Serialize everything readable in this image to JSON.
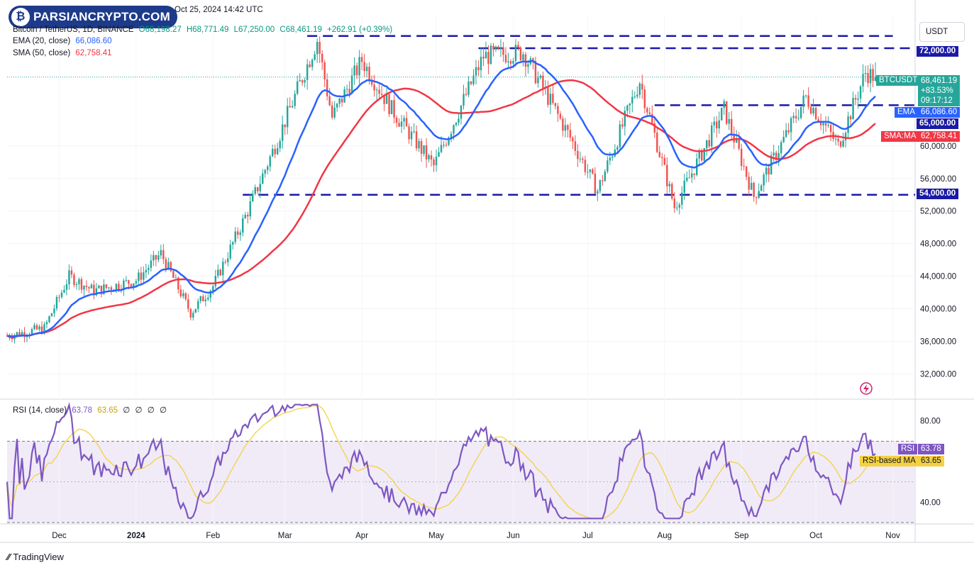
{
  "header": {
    "logo_text": "PARSIANCRYPTO.COM",
    "date_text": "Oct 25, 2024 14:42 UTC",
    "symbol_line": "Bitcoin / TetherUS, 1D, BINANCE",
    "ohlc": {
      "o": "O68,198.27",
      "h": "H68,771.49",
      "l": "L67,250.00",
      "c": "C68,461.19",
      "chg": "+262.91 (+0.39%)"
    },
    "ema_label": "EMA (20, close)",
    "ema_value": "66,086.60",
    "sma_label": "SMA (50, close)",
    "sma_value": "62,758.41",
    "rsi_label": "RSI (14, close)",
    "rsi_value": "63.78",
    "rsi_ma_value": "63.65",
    "rsi_extra": [
      "∅",
      "∅",
      "∅",
      "∅"
    ]
  },
  "price_scale": {
    "currency": "USDT",
    "ticks": [
      "60,000.00",
      "56,000.00",
      "52,000.00",
      "48,000.00",
      "44,000.00",
      "40,000.00",
      "36,000.00",
      "32,000.00"
    ],
    "tags": {
      "level_72k": "72,000.00",
      "last_name": "BTCUSDT",
      "last_price": "68,461.19",
      "last_change": "+83.53%",
      "countdown": "09:17:12",
      "ema_name": "EMA",
      "ema_price": "66,086.60",
      "level_65k": "65,000.00",
      "sma_name": "SMA:MA",
      "sma_price": "62,758.41",
      "level_54k": "54,000.00"
    }
  },
  "rsi_scale": {
    "ticks": [
      "80.00",
      "40.00"
    ],
    "rsi_name": "RSI",
    "rsi_value": "63.78",
    "ma_name": "RSI-based MA",
    "ma_value": "63.65"
  },
  "time_axis": [
    "Dec",
    "2024",
    "Feb",
    "Mar",
    "Apr",
    "May",
    "Jun",
    "Jul",
    "Aug",
    "Sep",
    "Oct",
    "Nov"
  ],
  "footer": {
    "brand": "TradingView"
  },
  "colors": {
    "up": "#26a69a",
    "down": "#ef5350",
    "ema": "#2962ff",
    "sma": "#f23645",
    "levels": "#1a1aa6",
    "rsi": "#7e57c2",
    "rsi_ma": "#f5d142",
    "rsi_band": "#ede7f6"
  },
  "chart_data": {
    "type": "candlestick",
    "title": "Bitcoin / TetherUS, 1D, BINANCE",
    "x_range": [
      "2023-11-10",
      "2024-11-10"
    ],
    "y_range": [
      29000,
      76000
    ],
    "horizontal_levels": [
      72000,
      65000,
      54000
    ],
    "last_price": 68461.19,
    "ema20_last": 66086.6,
    "sma50_last": 62758.41,
    "price_anchors": [
      [
        "2023-11-10",
        36700
      ],
      [
        "2023-11-25",
        37600
      ],
      [
        "2023-12-05",
        44000
      ],
      [
        "2023-12-15",
        42200
      ],
      [
        "2024-01-01",
        43500
      ],
      [
        "2024-01-11",
        46800
      ],
      [
        "2024-01-23",
        39500
      ],
      [
        "2024-02-01",
        42800
      ],
      [
        "2024-02-15",
        52000
      ],
      [
        "2024-02-28",
        61500
      ],
      [
        "2024-03-14",
        73000
      ],
      [
        "2024-03-20",
        63500
      ],
      [
        "2024-04-01",
        70500
      ],
      [
        "2024-04-13",
        64500
      ],
      [
        "2024-04-30",
        57500
      ],
      [
        "2024-05-20",
        71000
      ],
      [
        "2024-06-05",
        71500
      ],
      [
        "2024-06-24",
        61000
      ],
      [
        "2024-07-05",
        54500
      ],
      [
        "2024-07-22",
        68000
      ],
      [
        "2024-08-05",
        52500
      ],
      [
        "2024-08-25",
        64500
      ],
      [
        "2024-09-06",
        53800
      ],
      [
        "2024-09-27",
        66000
      ],
      [
        "2024-10-10",
        60000
      ],
      [
        "2024-10-21",
        69000
      ],
      [
        "2024-10-25",
        68461
      ]
    ],
    "rsi": {
      "range": [
        30,
        90
      ],
      "bands": [
        70,
        30
      ],
      "last": 63.78,
      "ma_last": 63.65
    }
  }
}
